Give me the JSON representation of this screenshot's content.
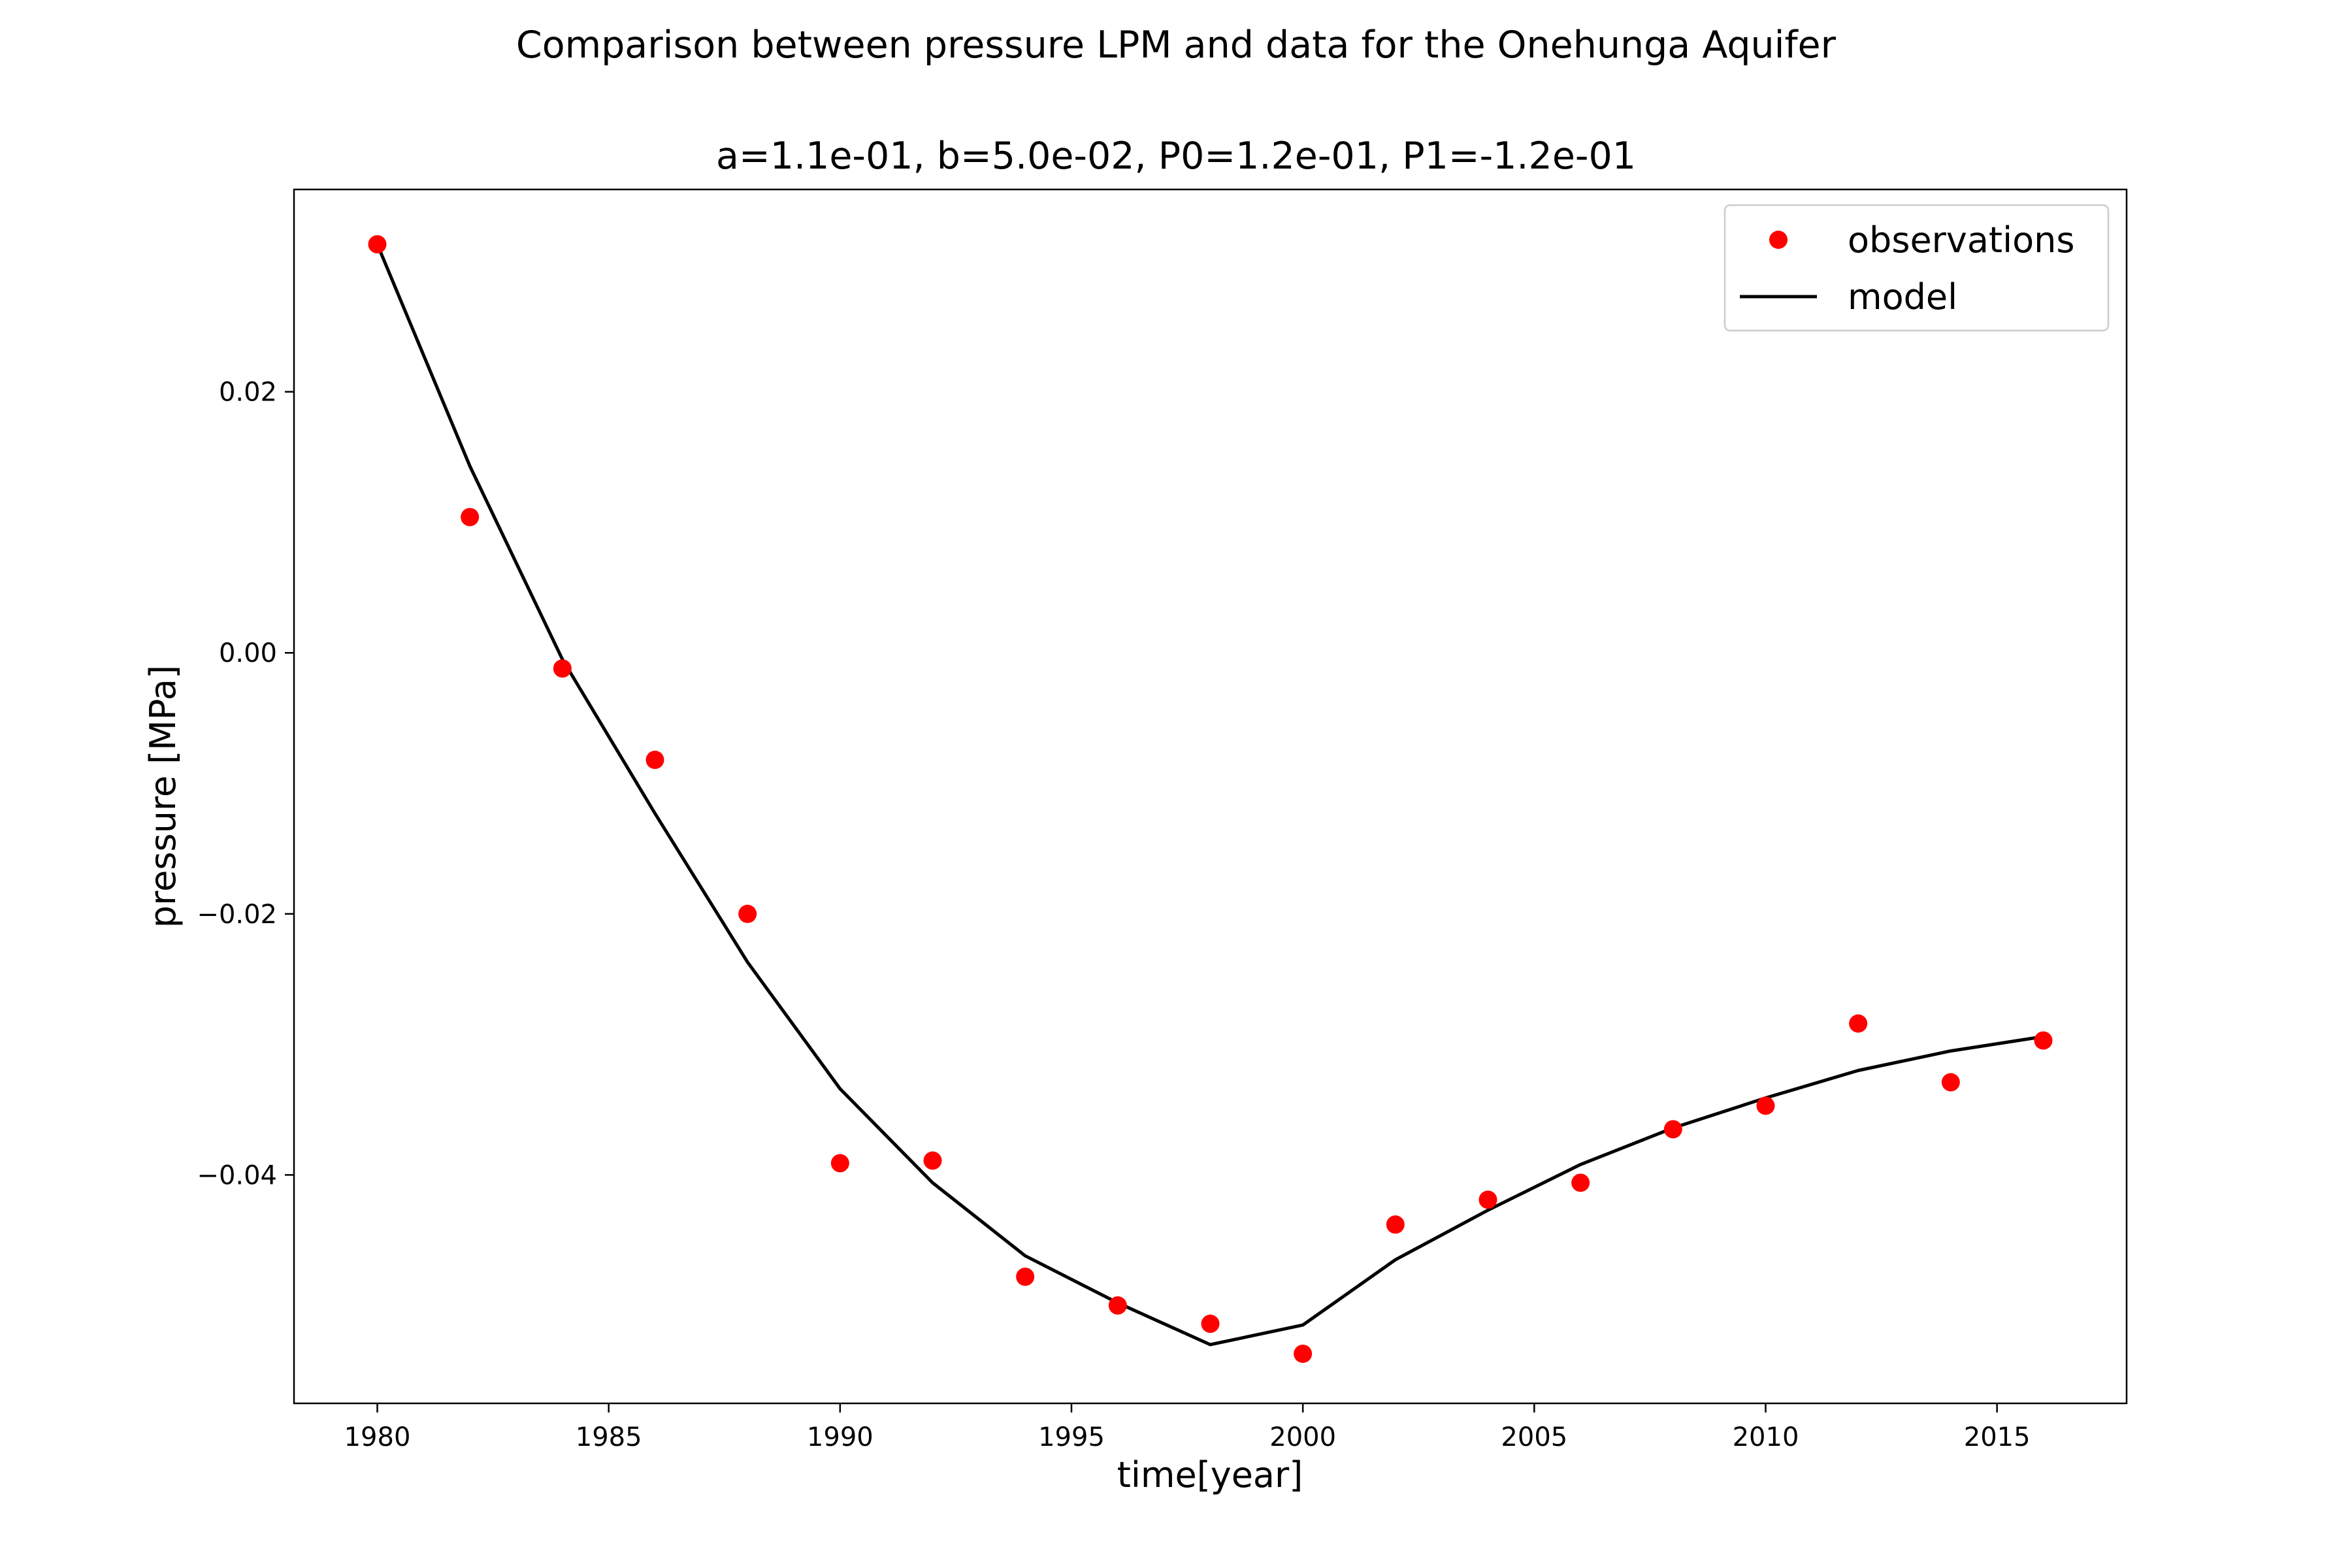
{
  "chart_data": {
    "type": "scatter",
    "suptitle": "Comparison between pressure LPM and data for the Onehunga Aquifer",
    "title": "a=1.1e-01,   b=5.0e-02,   P0=1.2e-01,  P1=-1.2e-01",
    "xlabel": "time[year]",
    "ylabel": "pressure [MPa]",
    "xlim": [
      1978.2,
      2017.8
    ],
    "ylim": [
      -0.0575,
      0.0355
    ],
    "xticks": [
      1980,
      1985,
      1990,
      1995,
      2000,
      2005,
      2010,
      2015
    ],
    "xtick_labels": [
      "1980",
      "1985",
      "1990",
      "1995",
      "2000",
      "2005",
      "2010",
      "2015"
    ],
    "yticks": [
      0.02,
      0.0,
      -0.02,
      -0.04
    ],
    "ytick_labels": [
      "0.02",
      "0.00",
      "−0.02",
      "−0.04"
    ],
    "grid": false,
    "legend_position": "top-right",
    "series": [
      {
        "name": "observations",
        "kind": "markers",
        "color": "#ff0000",
        "x": [
          1980,
          1982,
          1984,
          1986,
          1988,
          1990,
          1992,
          1994,
          1996,
          1998,
          2000,
          2002,
          2004,
          2006,
          2008,
          2010,
          2012,
          2014,
          2016
        ],
        "y": [
          0.0313,
          0.0104,
          -0.0012,
          -0.0082,
          -0.02,
          -0.0391,
          -0.0389,
          -0.0478,
          -0.05,
          -0.0514,
          -0.0537,
          -0.0438,
          -0.0419,
          -0.0406,
          -0.0365,
          -0.0347,
          -0.0284,
          -0.0329,
          -0.0297
        ]
      },
      {
        "name": "model",
        "kind": "line",
        "color": "#000000",
        "x": [
          1980,
          1982,
          1984,
          1986,
          1988,
          1990,
          1992,
          1994,
          1996,
          1998,
          2000,
          2002,
          2004,
          2006,
          2008,
          2010,
          2012,
          2014,
          2016
        ],
        "y": [
          0.0313,
          0.0143,
          -0.0005,
          -0.0123,
          -0.0237,
          -0.0334,
          -0.0406,
          -0.0462,
          -0.0498,
          -0.053,
          -0.0515,
          -0.0465,
          -0.0427,
          -0.0392,
          -0.0364,
          -0.0341,
          -0.032,
          -0.0305,
          -0.0294
        ]
      }
    ]
  }
}
